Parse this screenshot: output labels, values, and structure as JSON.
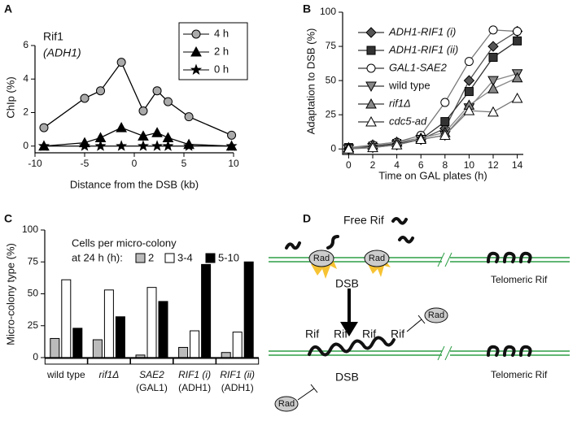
{
  "chart_data": [
    {
      "type": "line",
      "panel_label": "A",
      "annotations": [
        "Rif1",
        "(ADH1)"
      ],
      "x_label": "Distance from the DSB (kb)",
      "y_label": "ChIp (%)",
      "x": [
        -9.1,
        -5,
        -3.4,
        -1.3,
        0.9,
        2.3,
        3.4,
        5.5,
        9.8
      ],
      "xlim": [
        -10,
        10
      ],
      "xticks": [
        -10,
        -5,
        0,
        5,
        10
      ],
      "ylim": [
        -0.4,
        6
      ],
      "yticks": [
        0,
        2,
        4,
        6
      ],
      "series": [
        {
          "name": "4 h",
          "color": "#aaaaaa",
          "marker": "circle",
          "values": [
            1.1,
            2.85,
            3.3,
            5.0,
            2.1,
            3.3,
            2.65,
            1.75,
            0.65
          ]
        },
        {
          "name": "2 h",
          "color": "#000000",
          "marker": "triangle",
          "values": [
            0,
            0.2,
            0.5,
            1.1,
            0.6,
            0.8,
            0.5,
            0.1,
            0
          ]
        },
        {
          "name": "0 h",
          "color": "#000000",
          "marker": "star",
          "values": [
            0,
            0,
            0,
            0,
            0,
            0,
            0,
            0,
            0
          ]
        }
      ]
    },
    {
      "type": "line",
      "panel_label": "B",
      "x_label": "Time on GAL plates (h)",
      "y_label": "Adaptation to DSB (%)",
      "x": [
        0,
        2,
        4,
        6,
        8,
        10,
        12,
        14
      ],
      "xlim": [
        -0.5,
        14.5
      ],
      "xticks": [
        0,
        2,
        4,
        6,
        8,
        10,
        12,
        14
      ],
      "ylim": [
        -4,
        100
      ],
      "yticks": [
        0,
        25,
        50,
        75,
        100
      ],
      "series": [
        {
          "name": "ADH1-RIF1 (i)",
          "color": "#555555",
          "marker": "diamond",
          "values": [
            0,
            2,
            3,
            7,
            15,
            50,
            75,
            86
          ]
        },
        {
          "name": "ADH1-RIF1 (ii)",
          "color": "#333333",
          "marker": "square",
          "values": [
            1,
            2,
            4,
            7,
            20,
            42,
            67,
            79
          ]
        },
        {
          "name": "GAL1-SAE2",
          "color": "#ffffff",
          "marker": "circle",
          "values": [
            0,
            3,
            5,
            10,
            34,
            64,
            87,
            86
          ]
        },
        {
          "name": "wild type",
          "color": "#888888",
          "marker": "triangle-down",
          "values": [
            0,
            1,
            3,
            7,
            10,
            30,
            50,
            55
          ]
        },
        {
          "name": "rif1Δ",
          "color": "#888888",
          "marker": "triangle",
          "values": [
            1,
            3,
            5,
            8,
            12,
            32,
            44,
            52
          ]
        },
        {
          "name": "cdc5-ad",
          "color": "#ffffff",
          "marker": "triangle",
          "values": [
            0,
            1,
            3,
            7,
            10,
            28,
            27,
            37
          ]
        }
      ]
    },
    {
      "type": "bar",
      "panel_label": "C",
      "y_label": "Micro-colony type (%)",
      "legend_title": [
        "Cells per micro-colony",
        "at 24 h (h):"
      ],
      "categories": [
        [
          "wild type"
        ],
        [
          "rif1Δ"
        ],
        [
          "SAE2",
          "(GAL1)"
        ],
        [
          "RIF1 (i)",
          "(ADH1)"
        ],
        [
          "RIF1 (ii)",
          "(ADH1)"
        ]
      ],
      "ylim": [
        0,
        100
      ],
      "yticks": [
        0,
        25,
        50,
        75,
        100
      ],
      "series": [
        {
          "name": "2",
          "color": "#bbbbbb",
          "values": [
            15,
            14,
            2,
            8,
            4
          ]
        },
        {
          "name": "3-4",
          "color": "#ffffff",
          "values": [
            61,
            53,
            55,
            21,
            20
          ]
        },
        {
          "name": "5-10",
          "color": "#000000",
          "values": [
            23,
            32,
            44,
            73,
            75
          ]
        }
      ]
    }
  ],
  "diagram": {
    "panel_label": "D",
    "free_rif": "Free Rif",
    "top": {
      "rad": [
        "Rad",
        "Rad"
      ],
      "dsb": "DSB",
      "telomeric": "Telomeric Rif"
    },
    "bottom": {
      "rif": [
        "Rif",
        "Rif",
        "Rif",
        "Rif"
      ],
      "rad": [
        "Rad",
        "Rad"
      ],
      "dsb": "DSB",
      "telomeric": "Telomeric Rif"
    }
  }
}
